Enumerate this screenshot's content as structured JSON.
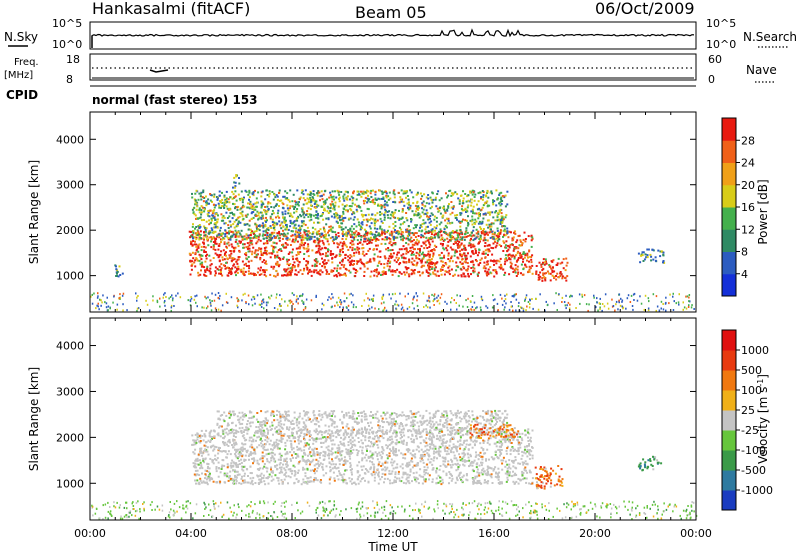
{
  "header": {
    "station": "Hankasalmi (fitACF)",
    "beam": "Beam 05",
    "date": "06/Oct/2009"
  },
  "nsky_panel": {
    "label": "N.Sky",
    "right_label": "N.Search",
    "ticks_left": [
      "10^5",
      "10^0"
    ],
    "ticks_right": [
      "10^5",
      "10^0"
    ]
  },
  "freq_panel": {
    "label_line1": "Freq.",
    "label_line2": "[MHz]",
    "ticks_left": [
      "18",
      "8"
    ],
    "ticks_right": [
      "60",
      "0"
    ],
    "right_label": "Nave"
  },
  "cpid_panel": {
    "label": "CPID",
    "text": "normal (fast stereo) 153"
  },
  "chart_data": [
    {
      "type": "heatmap",
      "name": "power",
      "ylabel": "Slant Range [km]",
      "xlabel": "",
      "x_unit": "hour UT",
      "xlim": [
        0,
        24
      ],
      "ylim": [
        200,
        4600
      ],
      "yticks": [
        "1000",
        "2000",
        "3000",
        "4000"
      ],
      "colorbar": {
        "label": "Power [dB]",
        "ticks": [
          "4",
          "8",
          "12",
          "16",
          "20",
          "24",
          "28"
        ],
        "colors": [
          "#1430d8",
          "#2c5cc0",
          "#2f8a64",
          "#44b04c",
          "#d8cc18",
          "#f0a018",
          "#f06018",
          "#e81a10"
        ]
      },
      "echo_regions": [
        {
          "t_start": 3.9,
          "t_end": 17.5,
          "r_min": 1000,
          "r_max": 2000,
          "level": "high"
        },
        {
          "t_start": 4.0,
          "t_end": 16.5,
          "r_min": 1800,
          "r_max": 2900,
          "level": "medium"
        },
        {
          "t_start": 17.6,
          "t_end": 18.9,
          "r_min": 900,
          "r_max": 1400,
          "level": "high"
        },
        {
          "t_start": 0.9,
          "t_end": 1.3,
          "r_min": 1000,
          "r_max": 1250,
          "level": "low"
        },
        {
          "t_start": 21.7,
          "t_end": 22.7,
          "r_min": 1300,
          "r_max": 1600,
          "level": "low"
        },
        {
          "t_start": 5.6,
          "t_end": 5.9,
          "r_min": 2950,
          "r_max": 3250,
          "level": "low"
        }
      ]
    },
    {
      "type": "heatmap",
      "name": "velocity",
      "ylabel": "Slant Range [km]",
      "xlabel": "Time UT",
      "x_unit": "hour UT",
      "xlim": [
        0,
        24
      ],
      "ylim": [
        200,
        4600
      ],
      "xticks": [
        "00:00",
        "04:00",
        "08:00",
        "12:00",
        "16:00",
        "20:00",
        "00:00"
      ],
      "yticks": [
        "1000",
        "2000",
        "3000",
        "4000"
      ],
      "colorbar": {
        "label": "Velocity [m s",
        "label_sup": "-1",
        "label_close": "]",
        "ticks": [
          "1000",
          "500",
          "100",
          "25",
          "-25",
          "-100",
          "-500",
          "-1000"
        ],
        "colors": [
          "#1a3cc0",
          "#2e7aa0",
          "#3a9a48",
          "#66c63c",
          "#c4c4c4",
          "#f0b018",
          "#f07810",
          "#e83a10",
          "#e01010"
        ]
      },
      "echo_regions": [
        {
          "t_start": 4.0,
          "t_end": 17.5,
          "r_min": 1000,
          "r_max": 2200,
          "level": "ground"
        },
        {
          "t_start": 5.0,
          "t_end": 16.5,
          "r_min": 2100,
          "r_max": 2600,
          "level": "ground"
        },
        {
          "t_start": 17.6,
          "t_end": 18.7,
          "r_min": 900,
          "r_max": 1400,
          "level": "away"
        },
        {
          "t_start": 15.0,
          "t_end": 17.0,
          "r_min": 2000,
          "r_max": 2300,
          "level": "away"
        },
        {
          "t_start": 21.7,
          "t_end": 22.6,
          "r_min": 1300,
          "r_max": 1600,
          "level": "toward"
        }
      ]
    }
  ]
}
